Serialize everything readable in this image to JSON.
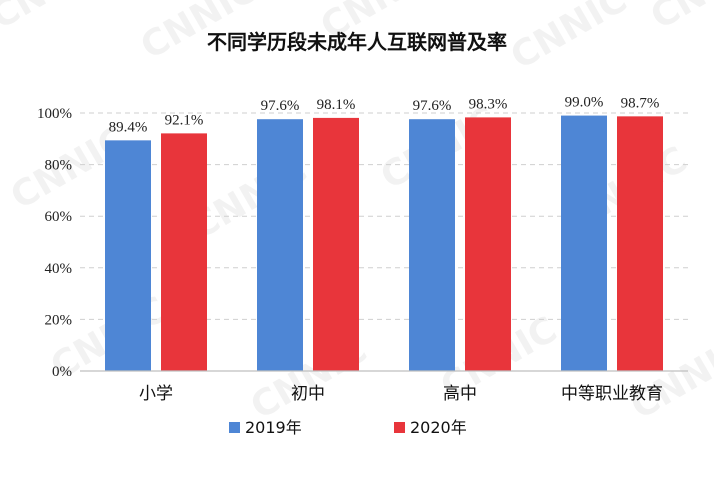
{
  "chart_data": {
    "type": "bar",
    "title": "不同学历段未成年人互联网普及率",
    "categories": [
      "小学",
      "初中",
      "高中",
      "中等职业教育"
    ],
    "series": [
      {
        "name": "2019年",
        "values": [
          89.4,
          97.6,
          97.6,
          99.0
        ],
        "labels": [
          "89.4%",
          "97.6%",
          "97.6%",
          "99.0%"
        ],
        "color": "#4e86d5"
      },
      {
        "name": "2020年",
        "values": [
          92.1,
          98.1,
          98.3,
          98.7
        ],
        "labels": [
          "92.1%",
          "98.1%",
          "98.3%",
          "98.7%"
        ],
        "color": "#e8353b"
      }
    ],
    "ylim": [
      0,
      100
    ],
    "yticks": [
      0,
      20,
      40,
      60,
      80,
      100
    ],
    "ytick_labels": [
      "0%",
      "20%",
      "40%",
      "60%",
      "80%",
      "100%"
    ],
    "xlabel": "",
    "ylabel": "",
    "grid": true,
    "legend": "bottom-center"
  },
  "watermark": "CNNIC"
}
